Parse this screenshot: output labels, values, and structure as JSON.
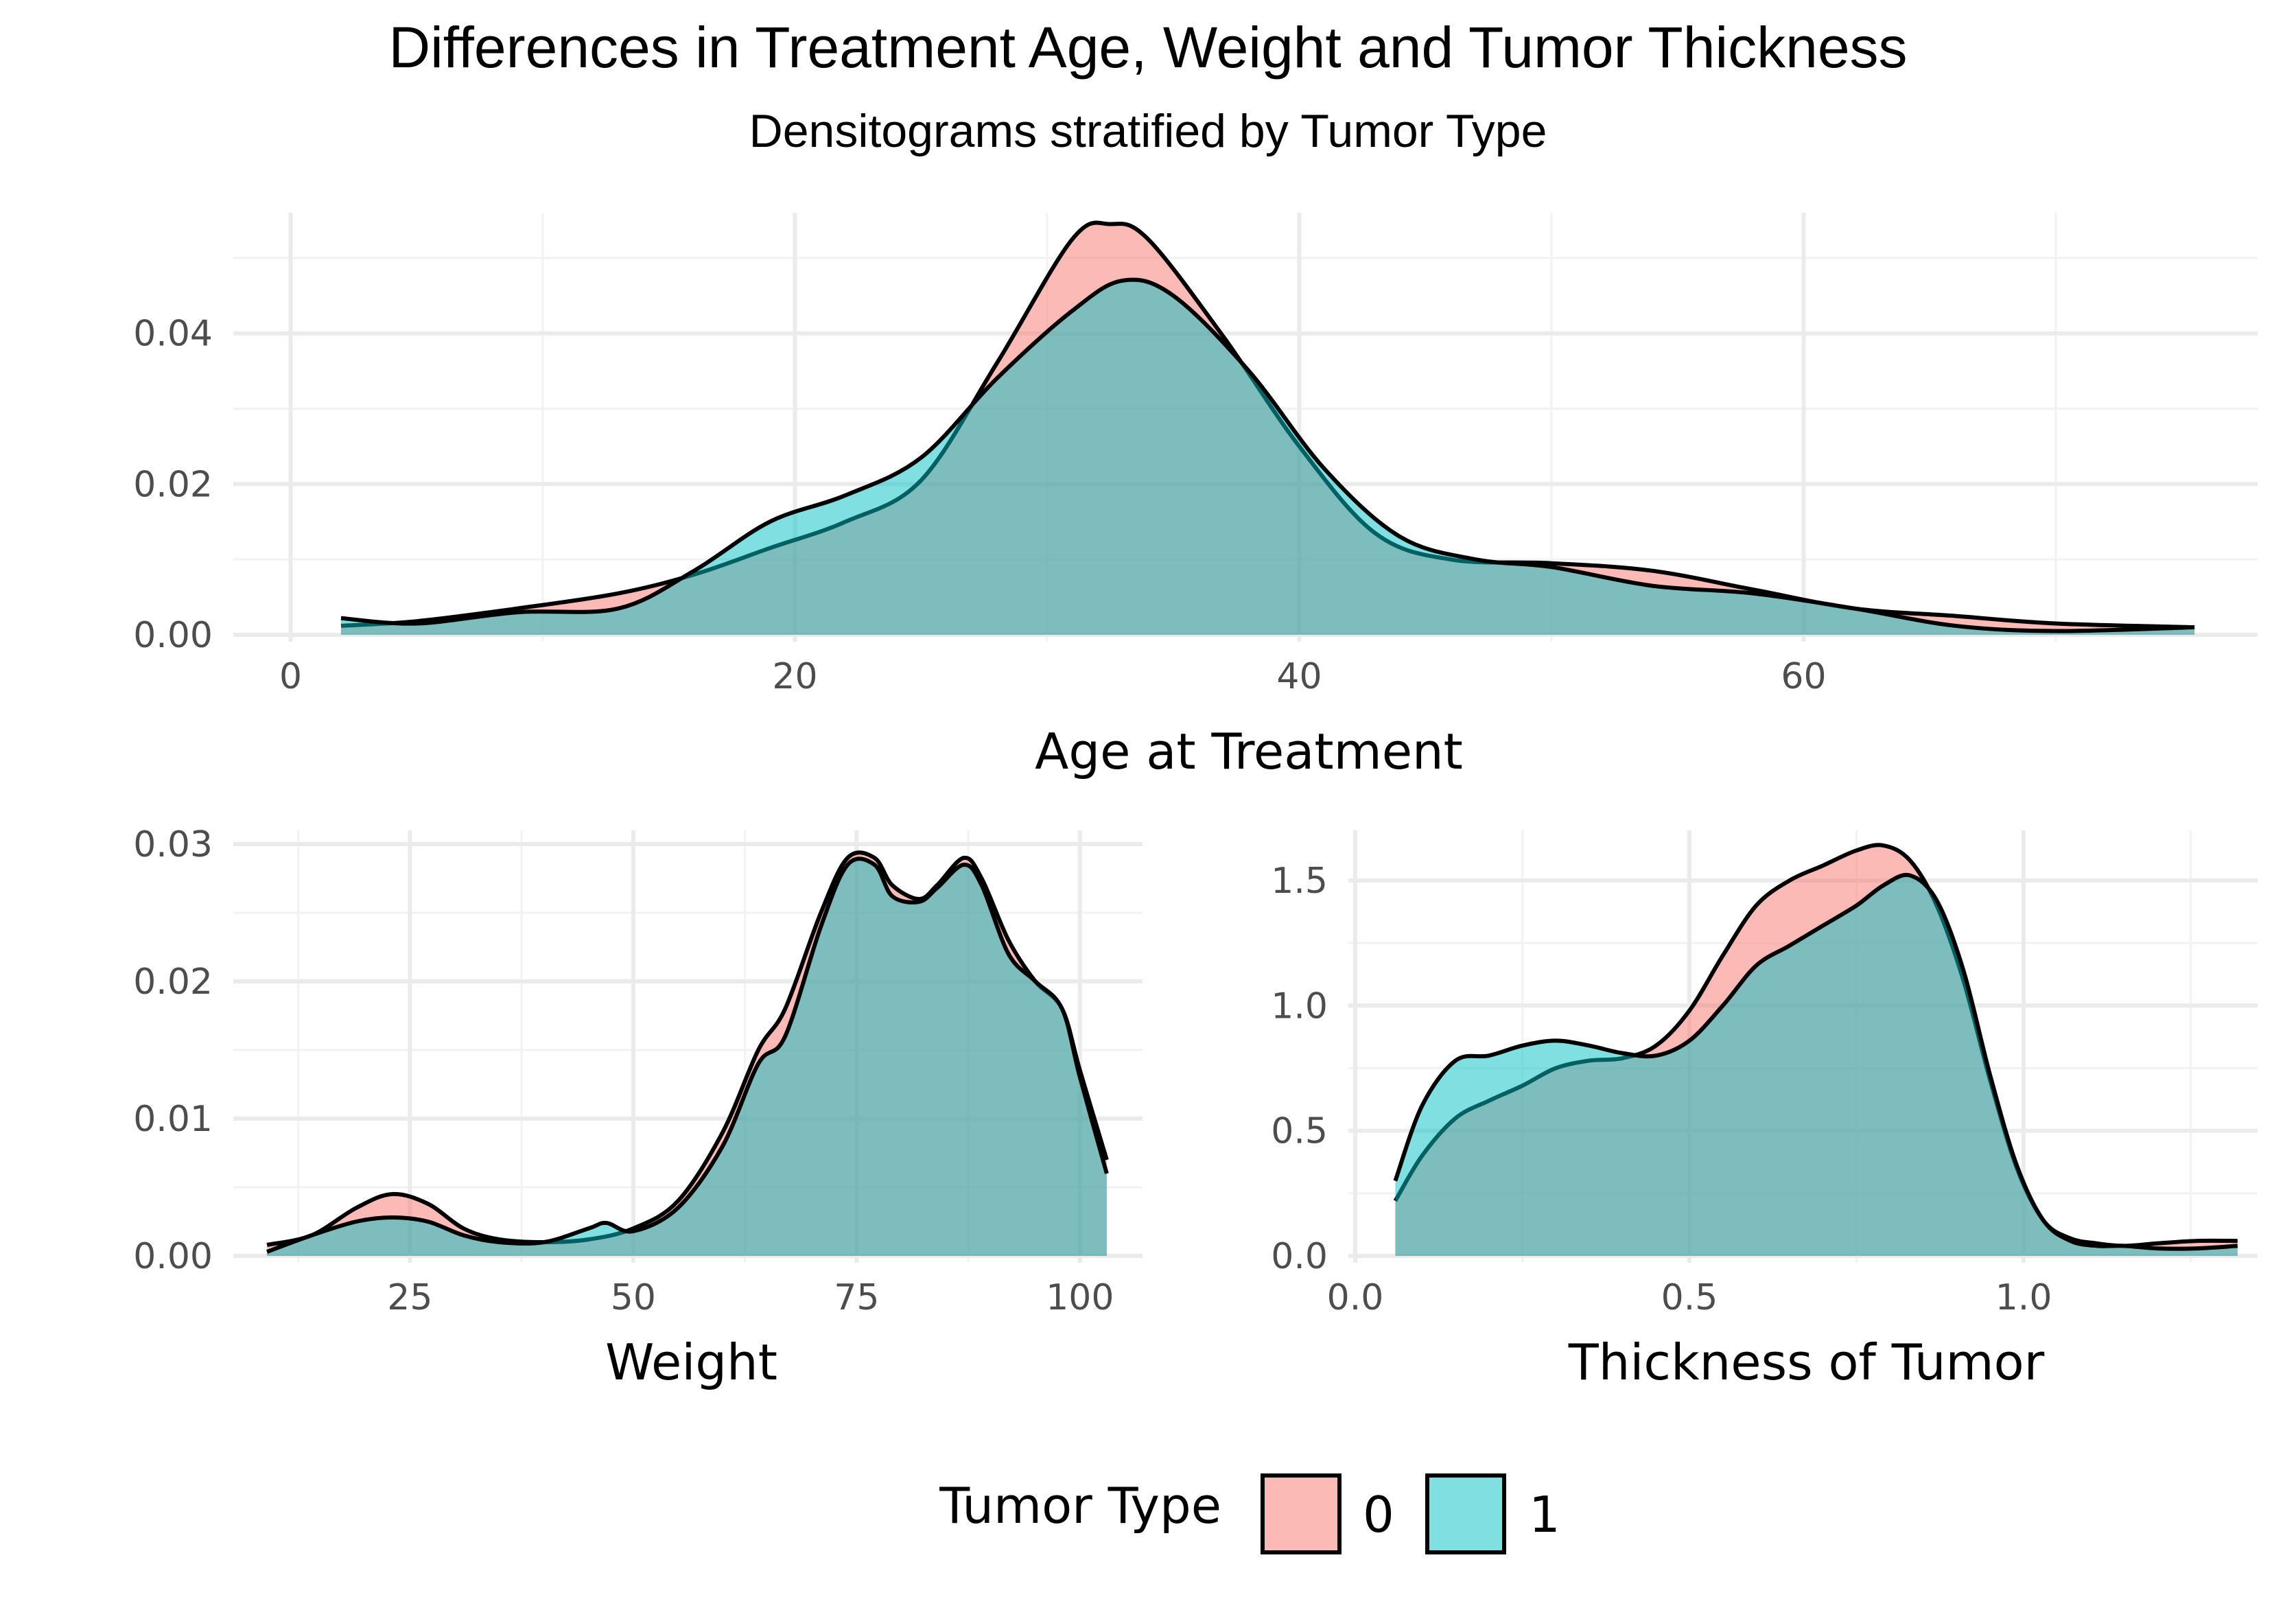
{
  "title": "Differences in Treatment Age, Weight and Tumor Thickness",
  "subtitle": "Densitograms stratified by Tumor Type",
  "legend": {
    "title": "Tumor Type",
    "items": [
      {
        "label": "0",
        "color": "#F8766D"
      },
      {
        "label": "1",
        "color": "#00BFC4"
      }
    ]
  },
  "chart_data": [
    {
      "type": "area",
      "subtype": "density",
      "xlabel": "Age at Treatment",
      "ylabel": "",
      "xlim": [
        -2,
        78
      ],
      "ylim": [
        0,
        0.056
      ],
      "xticks": [
        0,
        20,
        40,
        60
      ],
      "xtick_labels": [
        "0",
        "20",
        "40",
        "60"
      ],
      "yticks": [
        0,
        0.02,
        0.04
      ],
      "ytick_labels": [
        "0.00",
        "0.02",
        "0.04"
      ],
      "grid": true,
      "series": [
        {
          "name": "0",
          "color": "#F8766D",
          "x": [
            2,
            5,
            9,
            13,
            16,
            19,
            22,
            25,
            28,
            31,
            32.5,
            34,
            37,
            40,
            43,
            46,
            50,
            54,
            58,
            62,
            66,
            70,
            75.5
          ],
          "y": [
            0.0012,
            0.0018,
            0.0035,
            0.0055,
            0.008,
            0.0115,
            0.015,
            0.0205,
            0.036,
            0.0525,
            0.0545,
            0.0525,
            0.0395,
            0.025,
            0.0135,
            0.01,
            0.0095,
            0.0085,
            0.006,
            0.0035,
            0.0025,
            0.0015,
            0.001
          ]
        },
        {
          "name": "1",
          "color": "#00BFC4",
          "x": [
            2,
            5,
            9,
            13,
            16,
            19,
            22,
            25,
            28,
            31,
            33,
            35,
            38,
            41,
            44,
            47,
            50,
            54,
            58,
            62,
            66,
            70,
            75.5
          ],
          "y": [
            0.0022,
            0.0015,
            0.003,
            0.0035,
            0.0085,
            0.015,
            0.0185,
            0.0235,
            0.034,
            0.043,
            0.047,
            0.045,
            0.035,
            0.022,
            0.013,
            0.01,
            0.009,
            0.0065,
            0.0055,
            0.0035,
            0.0012,
            0.0005,
            0.001
          ]
        }
      ]
    },
    {
      "type": "area",
      "subtype": "density",
      "xlabel": "Weight",
      "ylabel": "",
      "xlim": [
        6,
        107
      ],
      "ylim": [
        0,
        0.031
      ],
      "xticks": [
        25,
        50,
        75,
        100
      ],
      "xtick_labels": [
        "25",
        "50",
        "75",
        "100"
      ],
      "yticks": [
        0,
        0.01,
        0.02,
        0.03
      ],
      "ytick_labels": [
        "0.00",
        "0.01",
        "0.02",
        "0.03"
      ],
      "grid": true,
      "series": [
        {
          "name": "0",
          "color": "#F8766D",
          "x": [
            9,
            14,
            19,
            23,
            27,
            31,
            35,
            40,
            45,
            50,
            55,
            60,
            64,
            67,
            71,
            74,
            77,
            79,
            82,
            84,
            87,
            89,
            92,
            95,
            98,
            100,
            103
          ],
          "y": [
            0.0008,
            0.0015,
            0.0035,
            0.0045,
            0.0038,
            0.002,
            0.0012,
            0.001,
            0.0012,
            0.002,
            0.004,
            0.009,
            0.015,
            0.018,
            0.025,
            0.029,
            0.029,
            0.027,
            0.026,
            0.027,
            0.029,
            0.0275,
            0.023,
            0.02,
            0.018,
            0.0135,
            0.007
          ]
        },
        {
          "name": "1",
          "color": "#00BFC4",
          "x": [
            9,
            14,
            19,
            23,
            27,
            31,
            35,
            40,
            45,
            47,
            50,
            55,
            60,
            64,
            67,
            71,
            74,
            77,
            79,
            82,
            84,
            87,
            89,
            92,
            95,
            98,
            100,
            103
          ],
          "y": [
            0.0003,
            0.0015,
            0.0025,
            0.0028,
            0.0025,
            0.0015,
            0.001,
            0.001,
            0.002,
            0.0024,
            0.0018,
            0.0035,
            0.008,
            0.014,
            0.016,
            0.024,
            0.0285,
            0.0285,
            0.0262,
            0.0258,
            0.0268,
            0.0285,
            0.027,
            0.022,
            0.02,
            0.018,
            0.013,
            0.006
          ]
        }
      ]
    },
    {
      "type": "area",
      "subtype": "density",
      "xlabel": "Thickness of Tumor",
      "ylabel": "",
      "xlim": [
        0,
        1.35
      ],
      "ylim": [
        0,
        1.7
      ],
      "xticks": [
        0.0,
        0.5,
        1.0
      ],
      "xtick_labels": [
        "0.0",
        "0.5",
        "1.0"
      ],
      "yticks": [
        0.0,
        0.5,
        1.0,
        1.5
      ],
      "ytick_labels": [
        "0.0",
        "0.5",
        "1.0",
        "1.5"
      ],
      "grid": true,
      "series": [
        {
          "name": "0",
          "color": "#F8766D",
          "x": [
            0.06,
            0.1,
            0.15,
            0.2,
            0.25,
            0.3,
            0.35,
            0.4,
            0.45,
            0.5,
            0.55,
            0.6,
            0.65,
            0.7,
            0.75,
            0.79,
            0.83,
            0.87,
            0.91,
            0.95,
            0.99,
            1.03,
            1.07,
            1.11,
            1.15,
            1.2,
            1.26,
            1.32
          ],
          "y": [
            0.22,
            0.4,
            0.55,
            0.62,
            0.68,
            0.75,
            0.78,
            0.79,
            0.84,
            0.98,
            1.2,
            1.4,
            1.5,
            1.56,
            1.62,
            1.64,
            1.58,
            1.4,
            1.1,
            0.7,
            0.35,
            0.14,
            0.07,
            0.05,
            0.04,
            0.05,
            0.06,
            0.06
          ]
        },
        {
          "name": "1",
          "color": "#00BFC4",
          "x": [
            0.06,
            0.1,
            0.15,
            0.2,
            0.25,
            0.3,
            0.35,
            0.4,
            0.45,
            0.5,
            0.55,
            0.6,
            0.65,
            0.7,
            0.75,
            0.79,
            0.83,
            0.87,
            0.91,
            0.95,
            0.99,
            1.03,
            1.07,
            1.11,
            1.15,
            1.2,
            1.26,
            1.32
          ],
          "y": [
            0.3,
            0.6,
            0.78,
            0.8,
            0.84,
            0.86,
            0.84,
            0.81,
            0.8,
            0.86,
            1.0,
            1.16,
            1.24,
            1.32,
            1.4,
            1.48,
            1.52,
            1.42,
            1.14,
            0.72,
            0.36,
            0.14,
            0.06,
            0.04,
            0.04,
            0.03,
            0.03,
            0.04
          ]
        }
      ]
    }
  ]
}
